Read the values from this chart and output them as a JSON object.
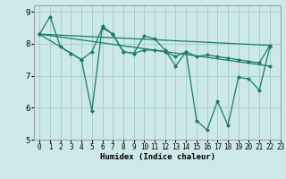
{
  "xlabel": "Humidex (Indice chaleur)",
  "background_color": "#cce8e8",
  "grid_color": "#aacccc",
  "line_color": "#1a7a6e",
  "xlim": [
    -0.5,
    23
  ],
  "ylim": [
    5,
    9.2
  ],
  "yticks": [
    5,
    6,
    7,
    8,
    9
  ],
  "xticks": [
    0,
    1,
    2,
    3,
    4,
    5,
    6,
    7,
    8,
    9,
    10,
    11,
    12,
    13,
    14,
    15,
    16,
    17,
    18,
    19,
    20,
    21,
    22,
    23
  ],
  "series": [
    {
      "x": [
        0,
        1,
        2,
        3,
        4,
        5,
        6,
        7,
        8,
        9,
        10,
        11,
        12,
        13,
        14,
        15,
        16,
        17,
        18,
        19,
        20,
        21,
        22
      ],
      "y": [
        8.3,
        8.85,
        7.9,
        7.7,
        7.5,
        5.9,
        8.55,
        8.3,
        7.75,
        7.7,
        8.25,
        8.15,
        7.8,
        7.3,
        7.75,
        5.6,
        5.3,
        6.2,
        5.45,
        6.95,
        6.9,
        6.55,
        7.9
      ]
    },
    {
      "x": [
        0,
        3,
        4,
        5,
        6,
        7,
        8,
        9,
        10,
        11,
        12,
        13,
        14,
        15,
        16,
        17,
        18,
        19,
        20,
        21,
        22
      ],
      "y": [
        8.3,
        7.7,
        7.5,
        7.75,
        8.5,
        8.3,
        7.75,
        7.7,
        7.8,
        7.8,
        7.75,
        7.6,
        7.75,
        7.6,
        7.65,
        7.6,
        7.55,
        7.5,
        7.45,
        7.4,
        7.95
      ]
    },
    {
      "x": [
        0,
        22
      ],
      "y": [
        8.3,
        7.95
      ]
    },
    {
      "x": [
        0,
        22
      ],
      "y": [
        8.3,
        7.3
      ]
    }
  ]
}
